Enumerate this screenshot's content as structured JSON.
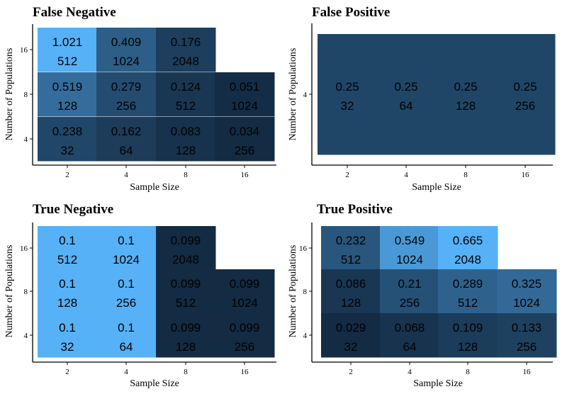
{
  "chart_data": [
    {
      "type": "heatmap",
      "title": "False Negative",
      "xlabel": "Sample Size",
      "ylabel": "Number of Populations",
      "x_ticks": [
        "2",
        "4",
        "8",
        "16"
      ],
      "y_ticks": [
        "4",
        "8",
        "16"
      ],
      "cells": [
        {
          "x": "2",
          "y": "16",
          "value": 1.021,
          "count": 512
        },
        {
          "x": "4",
          "y": "16",
          "value": 0.409,
          "count": 1024
        },
        {
          "x": "8",
          "y": "16",
          "value": 0.176,
          "count": 2048
        },
        {
          "x": "2",
          "y": "8",
          "value": 0.519,
          "count": 128
        },
        {
          "x": "4",
          "y": "8",
          "value": 0.279,
          "count": 256
        },
        {
          "x": "8",
          "y": "8",
          "value": 0.124,
          "count": 512
        },
        {
          "x": "16",
          "y": "8",
          "value": 0.051,
          "count": 1024
        },
        {
          "x": "2",
          "y": "4",
          "value": 0.238,
          "count": 32
        },
        {
          "x": "4",
          "y": "4",
          "value": 0.162,
          "count": 64
        },
        {
          "x": "8",
          "y": "4",
          "value": 0.083,
          "count": 128
        },
        {
          "x": "16",
          "y": "4",
          "value": 0.034,
          "count": 256
        }
      ]
    },
    {
      "type": "heatmap",
      "title": "False Positive",
      "xlabel": "Sample Size",
      "ylabel": "Number of Populations",
      "x_ticks": [
        "2",
        "4",
        "8",
        "16"
      ],
      "y_ticks": [
        "4"
      ],
      "cells": [
        {
          "x": "2",
          "y": "4",
          "value": 0.25,
          "count": 32
        },
        {
          "x": "4",
          "y": "4",
          "value": 0.25,
          "count": 64
        },
        {
          "x": "8",
          "y": "4",
          "value": 0.25,
          "count": 128
        },
        {
          "x": "16",
          "y": "4",
          "value": 0.25,
          "count": 256
        }
      ]
    },
    {
      "type": "heatmap",
      "title": "True Negative",
      "xlabel": "Sample Size",
      "ylabel": "Number of Populations",
      "x_ticks": [
        "2",
        "4",
        "8",
        "16"
      ],
      "y_ticks": [
        "4",
        "8",
        "16"
      ],
      "cells": [
        {
          "x": "2",
          "y": "16",
          "value": 0.1,
          "count": 512
        },
        {
          "x": "4",
          "y": "16",
          "value": 0.1,
          "count": 1024
        },
        {
          "x": "8",
          "y": "16",
          "value": 0.099,
          "count": 2048
        },
        {
          "x": "2",
          "y": "8",
          "value": 0.1,
          "count": 128
        },
        {
          "x": "4",
          "y": "8",
          "value": 0.1,
          "count": 256
        },
        {
          "x": "8",
          "y": "8",
          "value": 0.099,
          "count": 512
        },
        {
          "x": "16",
          "y": "8",
          "value": 0.099,
          "count": 1024
        },
        {
          "x": "2",
          "y": "4",
          "value": 0.1,
          "count": 32
        },
        {
          "x": "4",
          "y": "4",
          "value": 0.1,
          "count": 64
        },
        {
          "x": "8",
          "y": "4",
          "value": 0.099,
          "count": 128
        },
        {
          "x": "16",
          "y": "4",
          "value": 0.099,
          "count": 256
        }
      ]
    },
    {
      "type": "heatmap",
      "title": "True Positive",
      "xlabel": "Sample Size",
      "ylabel": "Number of Populations",
      "x_ticks": [
        "2",
        "4",
        "8",
        "16"
      ],
      "y_ticks": [
        "4",
        "8",
        "16"
      ],
      "cells": [
        {
          "x": "2",
          "y": "16",
          "value": 0.232,
          "count": 512
        },
        {
          "x": "4",
          "y": "16",
          "value": 0.549,
          "count": 1024
        },
        {
          "x": "8",
          "y": "16",
          "value": 0.665,
          "count": 2048
        },
        {
          "x": "2",
          "y": "8",
          "value": 0.086,
          "count": 128
        },
        {
          "x": "4",
          "y": "8",
          "value": 0.21,
          "count": 256
        },
        {
          "x": "8",
          "y": "8",
          "value": 0.289,
          "count": 512
        },
        {
          "x": "16",
          "y": "8",
          "value": 0.325,
          "count": 1024
        },
        {
          "x": "2",
          "y": "4",
          "value": 0.029,
          "count": 32
        },
        {
          "x": "4",
          "y": "4",
          "value": 0.068,
          "count": 64
        },
        {
          "x": "8",
          "y": "4",
          "value": 0.109,
          "count": 128
        },
        {
          "x": "16",
          "y": "4",
          "value": 0.133,
          "count": 256
        }
      ]
    }
  ],
  "colors": {
    "low": "#132B43",
    "high": "#56B1F7"
  }
}
